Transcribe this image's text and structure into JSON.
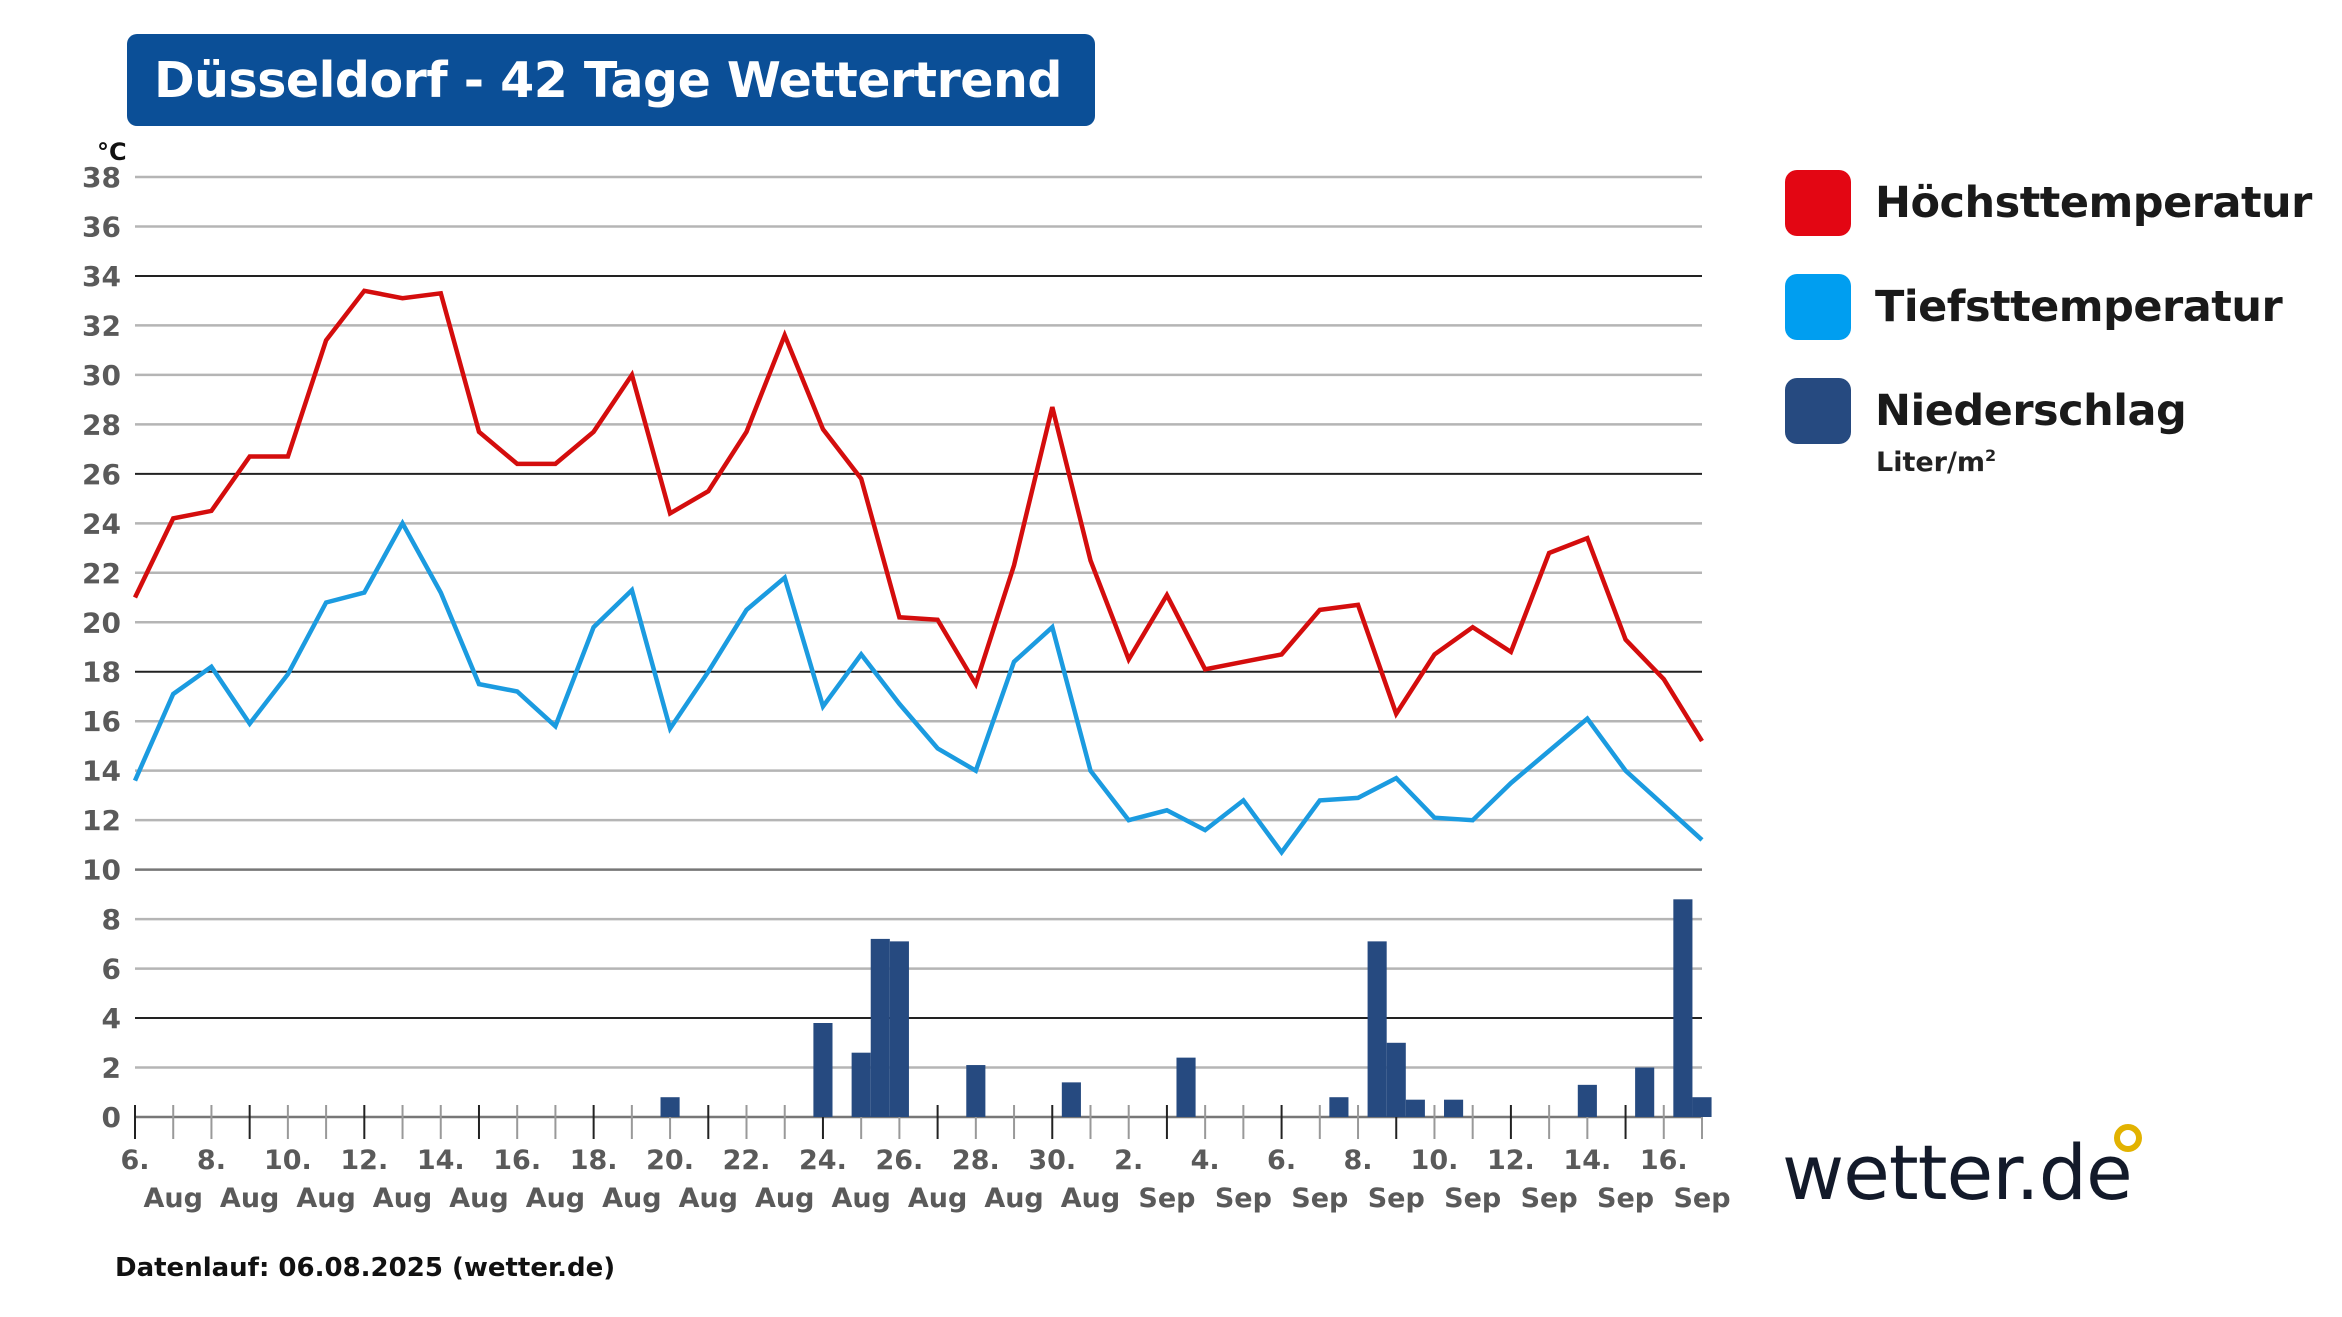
{
  "header": {
    "title": "Düsseldorf - 42 Tage Wettertrend"
  },
  "legend": [
    {
      "label": "Höchsttemperatur",
      "color": "#e30613"
    },
    {
      "label": "Tiefsttemperatur",
      "color": "#009ef0"
    },
    {
      "label": "Niederschlag",
      "color": "#264a80"
    }
  ],
  "legend_unit": {
    "text": "Liter/m",
    "sup": "2"
  },
  "footer": {
    "text": "Datenlauf: 06.08.2025 (wetter.de)"
  },
  "logo": {
    "text": "wetter.de"
  },
  "chart_data": {
    "type": "line",
    "title": "Düsseldorf - 42 Tage Wettertrend",
    "ylabel": "°C",
    "ylim": [
      0,
      38
    ],
    "yticks": [
      0,
      2,
      4,
      6,
      8,
      10,
      12,
      14,
      16,
      18,
      20,
      22,
      24,
      26,
      28,
      30,
      32,
      34,
      36,
      38
    ],
    "grid": true,
    "legend_position": "right",
    "x_tick_days": [
      "6.",
      "8.",
      "10.",
      "12.",
      "14.",
      "16.",
      "18.",
      "20.",
      "22.",
      "24.",
      "26.",
      "28.",
      "30.",
      "2.",
      "4.",
      "6.",
      "8.",
      "10.",
      "12.",
      "14.",
      "16."
    ],
    "x_tick_months": [
      "Aug",
      "Aug",
      "Aug",
      "Aug",
      "Aug",
      "Aug",
      "Aug",
      "Aug",
      "Aug",
      "Aug",
      "Aug",
      "Aug",
      "Aug",
      "Sep",
      "Sep",
      "Sep",
      "Sep",
      "Sep",
      "Sep",
      "Sep",
      "Sep"
    ],
    "series": [
      {
        "name": "Höchsttemperatur",
        "color": "#d40d0d",
        "values": [
          21,
          24.2,
          24.5,
          26.7,
          26.7,
          31.4,
          33.4,
          33.1,
          33.3,
          27.7,
          26.4,
          26.4,
          27.7,
          30,
          24.4,
          25.3,
          27.7,
          31.6,
          27.8,
          25.8,
          20.2,
          20.1,
          17.5,
          22.3,
          28.7,
          22.5,
          18.5,
          21.1,
          18.1,
          18.4,
          18.7,
          20.5,
          20.7,
          16.3,
          18.7,
          19.8,
          18.8,
          22.8,
          23.4,
          19.3,
          17.7,
          15.2
        ]
      },
      {
        "name": "Tiefsttemperatur",
        "color": "#1b9be0",
        "values": [
          13.6,
          17.1,
          18.2,
          15.9,
          17.9,
          20.8,
          21.2,
          24,
          21.2,
          17.5,
          17.2,
          15.8,
          19.8,
          21.3,
          15.7,
          18,
          20.5,
          21.8,
          16.6,
          18.7,
          16.7,
          14.9,
          14,
          18.4,
          19.8,
          14,
          12,
          12.4,
          11.6,
          12.8,
          10.7,
          12.8,
          12.9,
          13.7,
          12.1,
          12,
          13.5,
          14.8,
          16.1,
          14,
          12.6,
          11.2
        ]
      }
    ],
    "precipitation": {
      "name": "Niederschlag",
      "unit": "Liter/m²",
      "color": "#264a80",
      "resolution": "half-day",
      "values": [
        0,
        0,
        0,
        0,
        0,
        0,
        0,
        0,
        0,
        0,
        0,
        0,
        0,
        0,
        0,
        0,
        0,
        0,
        0,
        0,
        0,
        0,
        0,
        0,
        0,
        0,
        0,
        0,
        0.8,
        0,
        0,
        0,
        0,
        0,
        0,
        0,
        3.8,
        0,
        2.6,
        7.2,
        7.1,
        0,
        0,
        0,
        2.1,
        0,
        0,
        0,
        0,
        1.4,
        0,
        0,
        0,
        0,
        0,
        2.4,
        0,
        0,
        0,
        0,
        0,
        0,
        0,
        0.8,
        0,
        7.1,
        3.0,
        0.7,
        0,
        0.7,
        0,
        0,
        0,
        0,
        0,
        0,
        1.3,
        0,
        0,
        2.0,
        0,
        8.8,
        0.8,
        0
      ]
    }
  }
}
